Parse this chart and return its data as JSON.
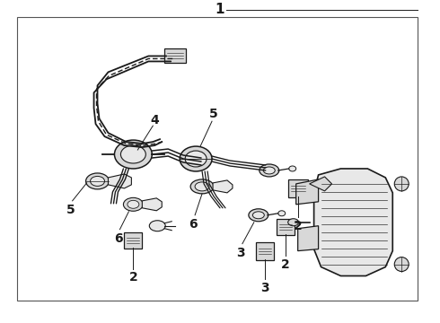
{
  "title": "1",
  "bg": "#ffffff",
  "lc": "#1a1a1a",
  "fig_width": 4.9,
  "fig_height": 3.6,
  "dpi": 100
}
